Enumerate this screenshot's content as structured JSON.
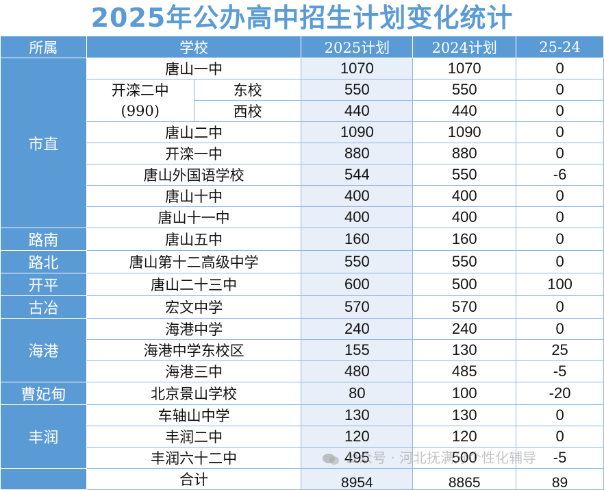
{
  "title": "2025年公办高中招生计划变化统计",
  "headers": [
    "所属",
    "学校",
    "2025计划",
    "2024计划",
    "25-24"
  ],
  "rows": [
    {
      "district": "市直",
      "school": "唐山一中",
      "y2025": "1070",
      "y2024": "1070",
      "diff": "0"
    },
    {
      "school": "开滦二中",
      "school_note": "(990)",
      "campus": "东校",
      "y2025": "550",
      "y2024": "550",
      "diff": "0"
    },
    {
      "campus": "西校",
      "y2025": "440",
      "y2024": "440",
      "diff": "0"
    },
    {
      "school": "唐山二中",
      "y2025": "1090",
      "y2024": "1090",
      "diff": "0"
    },
    {
      "school": "开滦一中",
      "y2025": "880",
      "y2024": "880",
      "diff": "0"
    },
    {
      "school": "唐山外国语学校",
      "y2025": "544",
      "y2024": "550",
      "diff": "-6"
    },
    {
      "school": "唐山十中",
      "y2025": "400",
      "y2024": "400",
      "diff": "0"
    },
    {
      "school": "唐山十一中",
      "y2025": "400",
      "y2024": "400",
      "diff": "0"
    },
    {
      "district": "路南",
      "school": "唐山五中",
      "y2025": "160",
      "y2024": "160",
      "diff": "0"
    },
    {
      "district": "路北",
      "school": "唐山第十二高级中学",
      "y2025": "550",
      "y2024": "550",
      "diff": "0"
    },
    {
      "district": "开平",
      "school": "唐山二十三中",
      "y2025": "600",
      "y2024": "500",
      "diff": "100"
    },
    {
      "district": "古冶",
      "school": "宏文中学",
      "y2025": "570",
      "y2024": "570",
      "diff": "0"
    },
    {
      "district": "海港",
      "school": "海港中学",
      "y2025": "240",
      "y2024": "240",
      "diff": "0"
    },
    {
      "school": "海港中学东校区",
      "y2025": "155",
      "y2024": "130",
      "diff": "25"
    },
    {
      "school": "海港三中",
      "y2025": "480",
      "y2024": "485",
      "diff": "-5"
    },
    {
      "district": "曹妃甸",
      "school": "北京景山学校",
      "y2025": "80",
      "y2024": "100",
      "diff": "-20"
    },
    {
      "district": "丰润",
      "school": "车轴山中学",
      "y2025": "130",
      "y2024": "130",
      "diff": "0"
    },
    {
      "school": "丰润二中",
      "y2025": "120",
      "y2024": "120",
      "diff": "0"
    },
    {
      "school": "丰润六十二中",
      "y2025": "495",
      "y2024": "500",
      "diff": "-5"
    }
  ],
  "total": {
    "label": "合计",
    "y2025": "8954",
    "y2024": "8865",
    "diff": "89"
  },
  "watermark": "公众号 · 河北抚满分个性化辅导",
  "colors": {
    "header_bg": "#5b9bd5",
    "title": "#5b9bd5",
    "col2025_bg": "#e8eff8",
    "border": "#8db4e2"
  }
}
